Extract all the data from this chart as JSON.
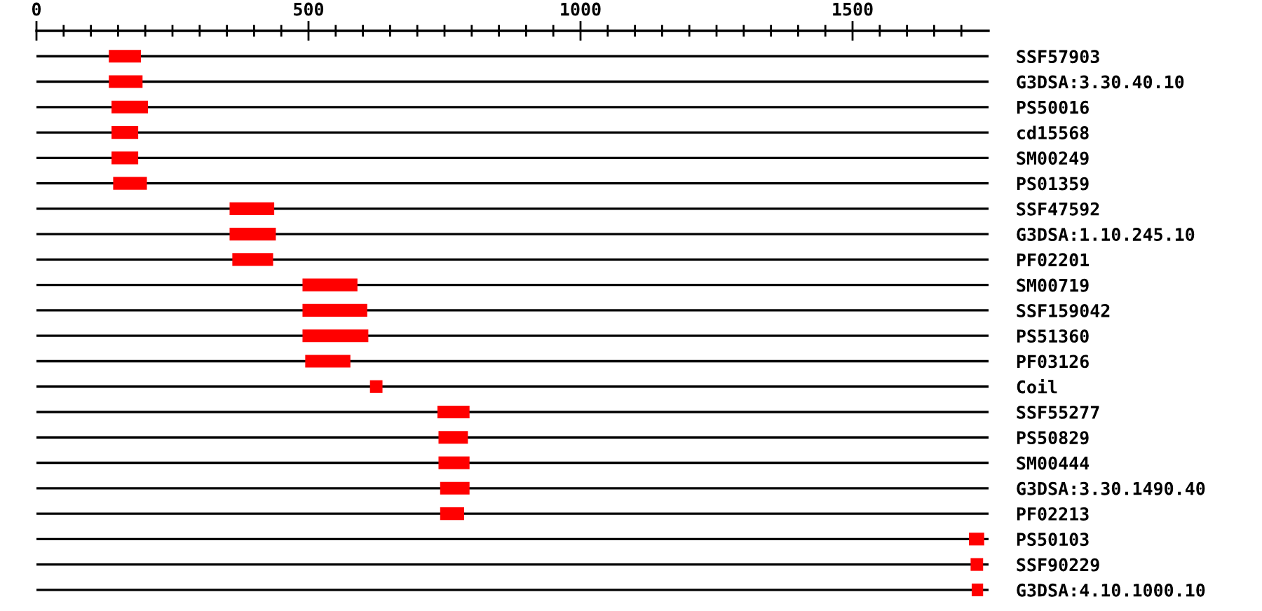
{
  "chart_data": {
    "type": "bar",
    "orientation": "horizontal",
    "categories": [
      "SSF57903",
      "G3DSA:3.30.40.10",
      "PS50016",
      "cd15568",
      "SM00249",
      "PS01359",
      "SSF47592",
      "G3DSA:1.10.245.10",
      "PF02201",
      "SM00719",
      "SSF159042",
      "PS51360",
      "PF03126",
      "Coil",
      "SSF55277",
      "PS50829",
      "SM00444",
      "G3DSA:3.30.1490.40",
      "PF02213",
      "PS50103",
      "SSF90229",
      "G3DSA:4.10.1000.10"
    ],
    "base": [
      133,
      133,
      138,
      138,
      138,
      141,
      355,
      355,
      360,
      489,
      489,
      489,
      494,
      613,
      737,
      739,
      739,
      742,
      742,
      1714,
      1717,
      1719
    ],
    "values": [
      59,
      62,
      67,
      49,
      49,
      62,
      82,
      85,
      75,
      101,
      119,
      121,
      83,
      23,
      59,
      54,
      57,
      54,
      44,
      28,
      23,
      21
    ],
    "color": "#ff0000",
    "xlim": [
      0,
      1750
    ],
    "xticks": [
      0,
      {
        "value": 50,
        "label": null
      },
      {
        "value": 100,
        "label": null
      },
      {
        "value": 150,
        "label": null
      },
      {
        "value": 200,
        "label": null
      },
      {
        "value": 250,
        "label": null
      },
      {
        "value": 300,
        "label": null
      },
      {
        "value": 350,
        "label": null
      },
      {
        "value": 400,
        "label": null
      },
      {
        "value": 450,
        "label": null
      },
      500,
      {
        "value": 550,
        "label": null
      },
      {
        "value": 600,
        "label": null
      },
      {
        "value": 650,
        "label": null
      },
      {
        "value": 700,
        "label": null
      },
      {
        "value": 750,
        "label": null
      },
      {
        "value": 800,
        "label": null
      },
      {
        "value": 850,
        "label": null
      },
      {
        "value": 900,
        "label": null
      },
      {
        "value": 950,
        "label": null
      },
      1000,
      {
        "value": 1050,
        "label": null
      },
      {
        "value": 1100,
        "label": null
      },
      {
        "value": 1150,
        "label": null
      },
      {
        "value": 1200,
        "label": null
      },
      {
        "value": 1250,
        "label": null
      },
      {
        "value": 1300,
        "label": null
      },
      {
        "value": 1350,
        "label": null
      },
      {
        "value": 1400,
        "label": null
      },
      {
        "value": 1450,
        "label": null
      },
      1500,
      {
        "value": 1550,
        "label": null
      },
      {
        "value": 1600,
        "label": null
      },
      {
        "value": 1650,
        "label": null
      },
      {
        "value": 1700,
        "label": null
      }
    ],
    "grid": "y"
  }
}
